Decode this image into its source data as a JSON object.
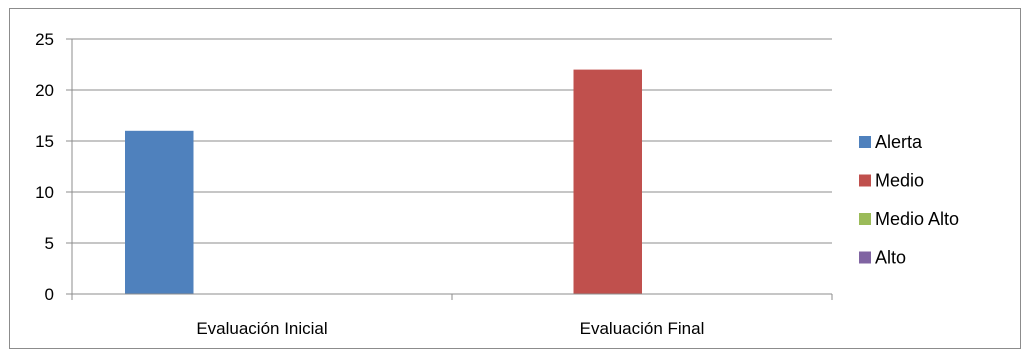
{
  "chart_data": {
    "type": "bar",
    "categories": [
      "Evaluación Inicial",
      "Evaluación Final"
    ],
    "series": [
      {
        "name": "Alerta",
        "color": "#4f81bd",
        "values": [
          16,
          0
        ]
      },
      {
        "name": "Medio",
        "color": "#c0504d",
        "values": [
          0,
          22
        ]
      },
      {
        "name": "Medio Alto",
        "color": "#9bbb59",
        "values": [
          0,
          0
        ]
      },
      {
        "name": "Alto",
        "color": "#8064a2",
        "values": [
          0,
          0
        ]
      }
    ],
    "ylim": [
      0,
      25
    ],
    "yticks": [
      0,
      5,
      10,
      15,
      20,
      25
    ],
    "grid": true,
    "legend_position": "right"
  }
}
